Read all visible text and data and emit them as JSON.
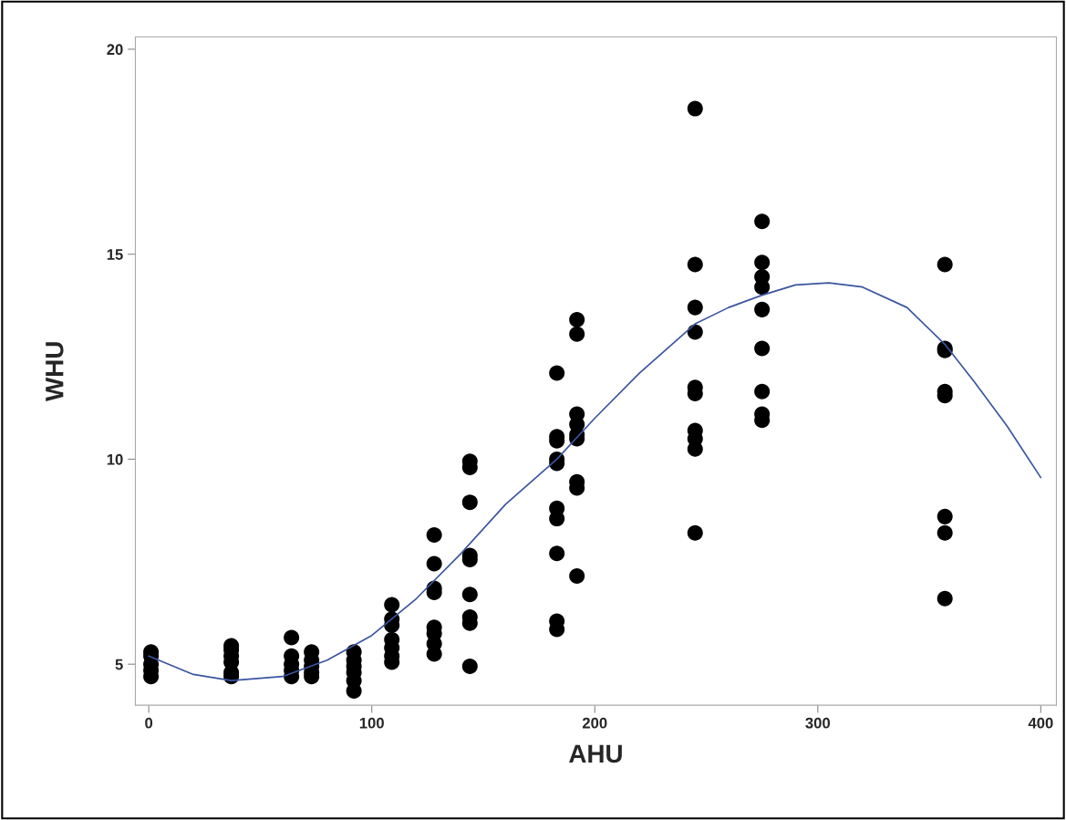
{
  "chart_data": {
    "type": "scatter",
    "xlabel": "AHU",
    "ylabel": "WHU",
    "xlim": [
      -6,
      407
    ],
    "ylim": [
      4.0,
      20.3
    ],
    "xticks": [
      0,
      100,
      200,
      300,
      400
    ],
    "yticks": [
      5,
      10,
      15,
      20
    ],
    "grid": false,
    "marker": "circle",
    "series": [
      {
        "color": "#000000",
        "x": [
          1,
          1,
          1,
          1,
          1,
          37,
          37,
          37,
          37,
          37,
          37,
          64,
          64,
          64,
          64,
          64,
          73,
          73,
          73,
          73,
          73,
          92,
          92,
          92,
          92,
          92,
          92,
          109,
          109,
          109,
          109,
          109,
          109,
          109,
          128,
          128,
          128,
          128,
          128,
          128,
          128,
          128,
          144,
          144,
          144,
          144,
          144,
          144,
          144,
          144,
          144,
          183,
          183,
          183,
          183,
          183,
          183,
          183,
          183,
          183,
          183,
          192,
          192,
          192,
          192,
          192,
          192,
          192,
          192,
          192,
          245,
          245,
          245,
          245,
          245,
          245,
          245,
          245,
          245,
          245,
          275,
          275,
          275,
          275,
          275,
          275,
          275,
          275,
          275,
          357,
          357,
          357,
          357,
          357,
          357,
          357,
          357
        ],
        "values": [
          5.3,
          5.2,
          5.0,
          4.85,
          4.7,
          5.45,
          5.35,
          5.2,
          5.05,
          4.8,
          4.7,
          5.65,
          5.2,
          5.0,
          4.85,
          4.7,
          5.3,
          5.1,
          4.95,
          4.8,
          4.7,
          5.3,
          5.1,
          4.95,
          4.8,
          4.6,
          4.35,
          6.45,
          6.1,
          5.95,
          5.6,
          5.4,
          5.2,
          5.05,
          8.15,
          7.45,
          6.85,
          6.75,
          5.9,
          5.75,
          5.5,
          5.25,
          9.95,
          9.8,
          8.95,
          7.65,
          7.55,
          6.7,
          6.15,
          6.0,
          4.95,
          12.1,
          10.55,
          10.45,
          10.0,
          9.9,
          8.8,
          8.55,
          7.7,
          6.05,
          5.85,
          13.4,
          13.05,
          11.1,
          10.85,
          10.6,
          10.5,
          9.45,
          9.3,
          7.15,
          18.55,
          14.75,
          13.7,
          13.1,
          11.75,
          11.6,
          10.7,
          10.5,
          10.25,
          8.2,
          15.8,
          14.8,
          14.45,
          14.2,
          13.65,
          12.7,
          11.65,
          11.1,
          10.95,
          14.75,
          12.7,
          12.65,
          11.65,
          11.55,
          8.6,
          8.2,
          6.6
        ]
      },
      {
        "type": "line",
        "color": "#3a55a0",
        "marker": "none",
        "line_style": "solid",
        "x": [
          0,
          20,
          37,
          60,
          80,
          100,
          120,
          140,
          160,
          183,
          200,
          220,
          245,
          260,
          275,
          290,
          305,
          320,
          340,
          357,
          370,
          385,
          400
        ],
        "values": [
          5.2,
          4.75,
          4.6,
          4.7,
          5.1,
          5.7,
          6.6,
          7.7,
          8.9,
          10.0,
          11.0,
          12.1,
          13.3,
          13.7,
          14.0,
          14.25,
          14.3,
          14.2,
          13.7,
          12.8,
          11.9,
          10.8,
          9.55
        ]
      }
    ]
  }
}
